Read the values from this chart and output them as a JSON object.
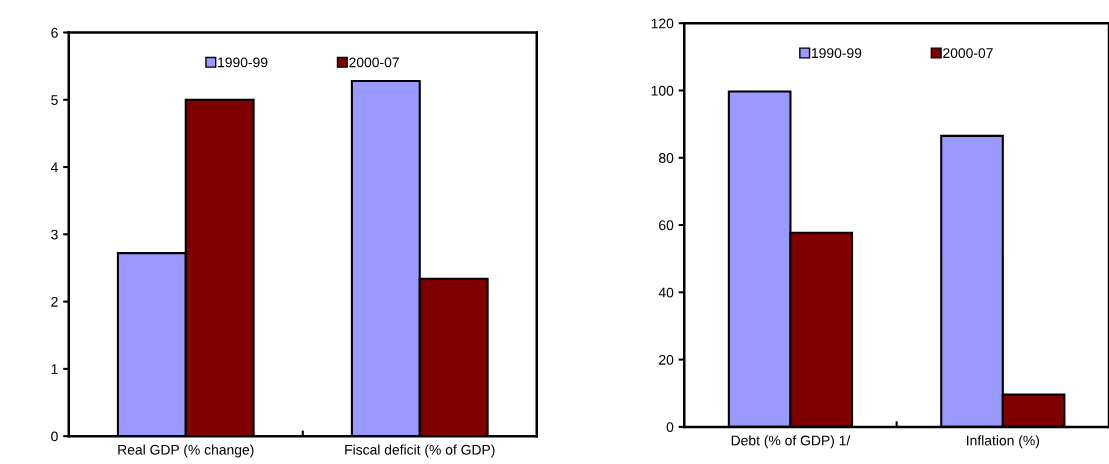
{
  "chart_data": [
    {
      "type": "bar",
      "categories": [
        "Real GDP (% change)",
        "Fiscal deficit (% of GDP)"
      ],
      "series": [
        {
          "name": "1990-99",
          "color": "#9999ff",
          "values": [
            2.72,
            5.28
          ]
        },
        {
          "name": "2000-07",
          "color": "#800000",
          "values": [
            5.0,
            2.34
          ]
        }
      ],
      "ylim": [
        0,
        6
      ],
      "yticks": [
        0,
        1,
        2,
        3,
        4,
        5,
        6
      ],
      "grid": false,
      "legend": "top"
    },
    {
      "type": "bar",
      "categories": [
        "Debt (% of GDP) 1/",
        "Inflation (%)"
      ],
      "series": [
        {
          "name": "1990-99",
          "color": "#9999ff",
          "values": [
            99.7,
            86.5
          ]
        },
        {
          "name": "2000-07",
          "color": "#800000",
          "values": [
            57.7,
            9.6
          ]
        }
      ],
      "ylim": [
        0,
        120
      ],
      "yticks": [
        0,
        20,
        40,
        60,
        80,
        100,
        120
      ],
      "grid": false,
      "legend": "top"
    }
  ]
}
